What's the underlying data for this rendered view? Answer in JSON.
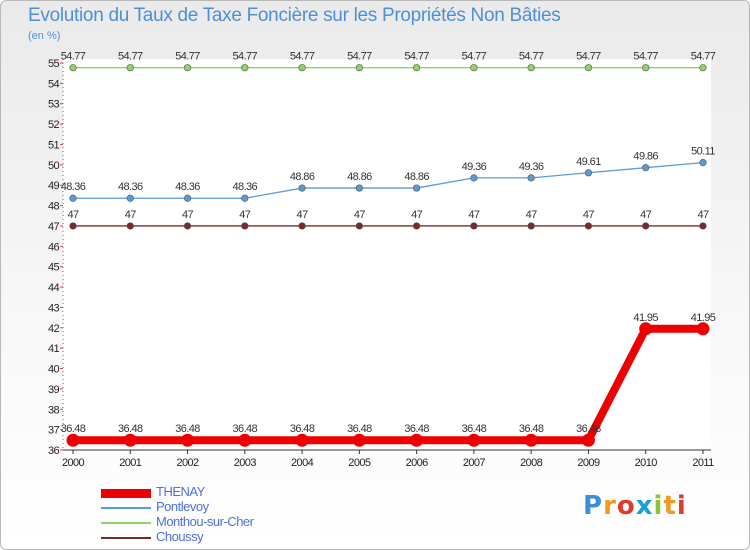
{
  "chart_data": {
    "type": "line",
    "title": "Evolution du Taux de Taxe Foncière sur les Propriétés Non Bâties",
    "ylabel": "(en %)",
    "xlabel": "",
    "ylim": [
      36,
      55
    ],
    "categories": [
      "2000",
      "2001",
      "2002",
      "2003",
      "2004",
      "2005",
      "2006",
      "2007",
      "2008",
      "2009",
      "2010",
      "2011"
    ],
    "y_ticks": [
      36,
      37,
      38,
      39,
      40,
      41,
      42,
      43,
      44,
      45,
      46,
      47,
      48,
      49,
      50,
      51,
      52,
      53,
      54,
      55
    ],
    "series": [
      {
        "name": "THENAY",
        "color": "#ee0000",
        "values": [
          36.48,
          36.48,
          36.48,
          36.48,
          36.48,
          36.48,
          36.48,
          36.48,
          36.48,
          36.48,
          41.95,
          41.95
        ],
        "labels": [
          "36.48",
          "36.48",
          "36.48",
          "36.48",
          "36.48",
          "36.48",
          "36.48",
          "36.48",
          "36.48",
          "36.48",
          "41.95",
          "41.95"
        ]
      },
      {
        "name": "Pontlevoy",
        "color": "#5b9bd5",
        "values": [
          48.36,
          48.36,
          48.36,
          48.36,
          48.86,
          48.86,
          48.86,
          49.36,
          49.36,
          49.61,
          49.86,
          50.11
        ],
        "labels": [
          "48.36",
          "48.36",
          "48.36",
          "48.36",
          "48.86",
          "48.86",
          "48.86",
          "49.36",
          "49.36",
          "49.61",
          "49.86",
          "50.11"
        ]
      },
      {
        "name": "Monthou-sur-Cher",
        "color": "#8fd460",
        "values": [
          54.77,
          54.77,
          54.77,
          54.77,
          54.77,
          54.77,
          54.77,
          54.77,
          54.77,
          54.77,
          54.77,
          54.77
        ],
        "labels": [
          "54.77",
          "54.77",
          "54.77",
          "54.77",
          "54.77",
          "54.77",
          "54.77",
          "54.77",
          "54.77",
          "54.77",
          "54.77",
          "54.77"
        ]
      },
      {
        "name": "Choussy",
        "color": "#7a2a2a",
        "values": [
          47,
          47,
          47,
          47,
          47,
          47,
          47,
          47,
          47,
          47,
          47,
          47
        ],
        "labels": [
          "47",
          "47",
          "47",
          "47",
          "47",
          "47",
          "47",
          "47",
          "47",
          "47",
          "47",
          "47"
        ]
      }
    ]
  },
  "logo": {
    "letters": [
      "P",
      "r",
      "o",
      "x",
      "i",
      "t",
      "i"
    ],
    "colors": [
      "#3a8fd8",
      "#f09a1e",
      "#e23a2a",
      "#1a9fd8",
      "#8ac43a",
      "#f09a1e",
      "#e23a2a"
    ]
  }
}
